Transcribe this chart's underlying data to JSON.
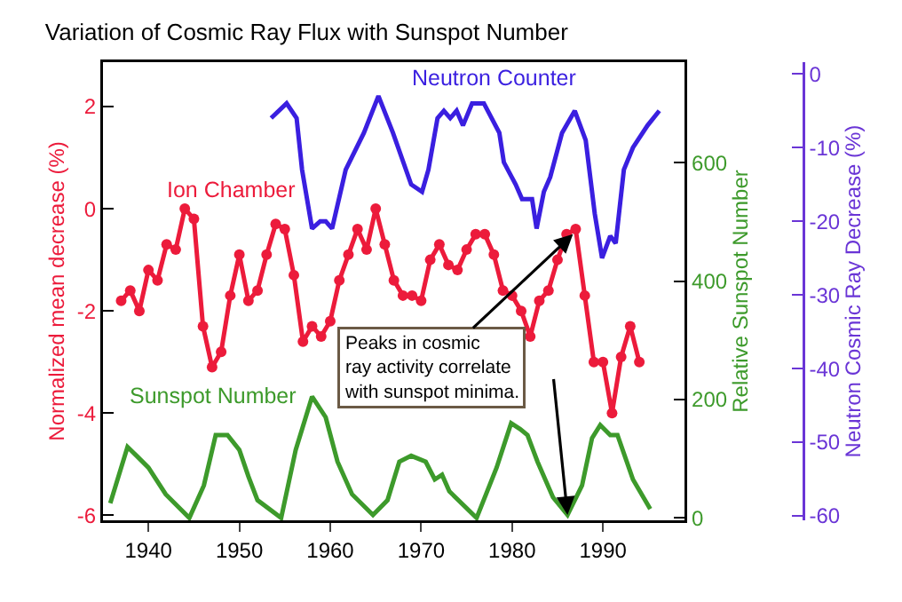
{
  "chart_data": {
    "type": "line",
    "title": "Variation of Cosmic Ray Flux with Sunspot Number",
    "ylabel": "Normalized mean decrease (%)",
    "y2label": "Relative Sunspot Number",
    "y3label": "Neutron Cosmic Ray Decrease (%)",
    "xlim": [
      1935,
      1999
    ],
    "xticks": [
      1940,
      1950,
      1960,
      1970,
      1980,
      1990
    ],
    "ylim": [
      -6.1,
      2.87
    ],
    "yticks": [
      -6,
      -4,
      -2,
      0,
      2
    ],
    "y2lim": [
      -4,
      770
    ],
    "y2ticks": [
      0,
      200,
      400,
      600
    ],
    "y3lim": [
      -60.6,
      1.6
    ],
    "y3ticks": [
      -60,
      -50,
      -40,
      -30,
      -20,
      -10,
      0
    ],
    "legend": false,
    "series": [
      {
        "name": "Ion Chamber",
        "color": "#ec1b3b",
        "marker": "circle",
        "x": [
          1937,
          1938,
          1939,
          1940,
          1941,
          1942,
          1943,
          1944,
          1945,
          1946,
          1947,
          1948,
          1949,
          1950,
          1951,
          1952,
          1953,
          1954,
          1955,
          1956,
          1957,
          1958,
          1959,
          1960,
          1961,
          1962,
          1963,
          1964,
          1965,
          1966,
          1967,
          1968,
          1969,
          1970,
          1971,
          1972,
          1973,
          1974,
          1975,
          1976,
          1977,
          1978,
          1979,
          1980,
          1981,
          1982,
          1983,
          1984,
          1985,
          1986,
          1987,
          1988,
          1989,
          1990,
          1991,
          1992,
          1993,
          1994
        ],
        "values": [
          -1.8,
          -1.6,
          -2.0,
          -1.2,
          -1.4,
          -0.7,
          -0.8,
          0.0,
          -0.2,
          -2.3,
          -3.1,
          -2.8,
          -1.7,
          -0.9,
          -1.8,
          -1.6,
          -0.9,
          -0.3,
          -0.4,
          -1.3,
          -2.6,
          -2.3,
          -2.5,
          -2.2,
          -1.4,
          -0.9,
          -0.4,
          -0.8,
          0.0,
          -0.7,
          -1.4,
          -1.7,
          -1.7,
          -1.8,
          -1.0,
          -0.7,
          -1.1,
          -1.2,
          -0.8,
          -0.5,
          -0.5,
          -0.9,
          -1.6,
          -1.7,
          -2.0,
          -2.5,
          -1.8,
          -1.6,
          -1.0,
          -0.5,
          -0.4,
          -1.7,
          -3.0,
          -3.0,
          -4.0,
          -2.9,
          -2.3,
          -3.0
        ]
      },
      {
        "name": "Neutron Counter",
        "color": "#3a1fe0",
        "marker": "none",
        "axis": "y3",
        "x": [
          1953.5,
          1955.2,
          1956.3,
          1956.9,
          1958.0,
          1958.9,
          1959.5,
          1960.2,
          1961.7,
          1963.7,
          1965.3,
          1966.9,
          1968.9,
          1970.1,
          1970.8,
          1971.8,
          1972.5,
          1973.2,
          1973.9,
          1974.6,
          1975.6,
          1976.9,
          1978.6,
          1979.1,
          1980.4,
          1981.1,
          1982.2,
          1982.7,
          1983.5,
          1984.2,
          1985.5,
          1986.9,
          1988.1,
          1989.1,
          1989.9,
          1990.8,
          1991.4,
          1992.3,
          1993.3,
          1994.9,
          1996.2
        ],
        "values": [
          -6,
          -4,
          -6,
          -13,
          -21,
          -20,
          -20,
          -21,
          -13,
          -8,
          -3,
          -8,
          -15,
          -16,
          -13,
          -6,
          -5,
          -6,
          -5,
          -7,
          -4,
          -4,
          -8,
          -12,
          -15,
          -17,
          -17,
          -21,
          -16,
          -14,
          -8,
          -5,
          -9,
          -19,
          -25,
          -22,
          -23,
          -13,
          -10,
          -7,
          -5
        ]
      },
      {
        "name": "Sunspot Number",
        "color": "#3d9a2b",
        "marker": "none",
        "axis": "y2",
        "x": [
          1935.8,
          1936.4,
          1937.7,
          1938.7,
          1940.0,
          1941.9,
          1944.5,
          1946.1,
          1947.4,
          1948.7,
          1950.0,
          1951.0,
          1952.0,
          1954.6,
          1956.2,
          1958.0,
          1959.5,
          1960.8,
          1962.4,
          1964.7,
          1966.3,
          1967.6,
          1968.9,
          1970.5,
          1971.5,
          1972.3,
          1973.1,
          1976.1,
          1978.3,
          1979.9,
          1980.9,
          1981.7,
          1982.8,
          1984.5,
          1986.1,
          1987.7,
          1988.8,
          1989.7,
          1990.8,
          1991.6,
          1993.3,
          1995.2
        ],
        "values": [
          25,
          55,
          120,
          105,
          85,
          40,
          0,
          55,
          140,
          140,
          115,
          70,
          30,
          0,
          115,
          205,
          170,
          95,
          40,
          5,
          30,
          95,
          105,
          95,
          65,
          73,
          45,
          0,
          85,
          160,
          150,
          140,
          95,
          35,
          5,
          55,
          135,
          157,
          140,
          140,
          65,
          15
        ]
      }
    ],
    "annotations": [
      {
        "text": "Peaks in cosmic\nray activity correlate\nwith sunspot minima.",
        "x": 1986.7,
        "y": -0.5
      }
    ]
  }
}
